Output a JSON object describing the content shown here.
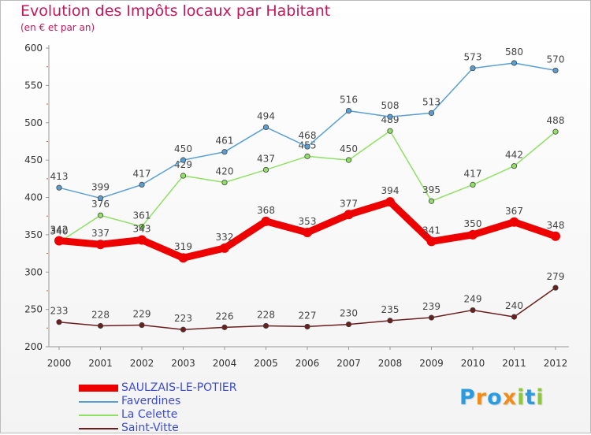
{
  "title": "Evolution des Impôts locaux par Habitant",
  "subtitle": "(en € et par an)",
  "logo": {
    "letters": [
      {
        "ch": "P",
        "color": "#2b9be0"
      },
      {
        "ch": "r",
        "color": "#f28c1b"
      },
      {
        "ch": "o",
        "color": "#2b9be0"
      },
      {
        "ch": "x",
        "color": "#f28c1b"
      },
      {
        "ch": "i",
        "color": "#8dc63f"
      },
      {
        "ch": "t",
        "color": "#2b9be0"
      },
      {
        "ch": "i",
        "color": "#8dc63f"
      }
    ]
  },
  "chart_data": {
    "type": "line",
    "x": [
      "2000",
      "2001",
      "2002",
      "2003",
      "2004",
      "2005",
      "2006",
      "2007",
      "2008",
      "2009",
      "2010",
      "2011",
      "2012"
    ],
    "ylim": [
      200,
      600
    ],
    "yticks": [
      "200",
      "250",
      "300",
      "350",
      "400",
      "450",
      "500",
      "550",
      "600"
    ],
    "grid": false,
    "legend_position": "bottom-left",
    "series": [
      {
        "name": "Saint-Vitte",
        "color": "#6b1e1e",
        "values": [
          233,
          228,
          229,
          223,
          226,
          228,
          227,
          230,
          235,
          239,
          249,
          240,
          279
        ],
        "labels": [
          "233",
          "228",
          "229",
          "223",
          "226",
          "228",
          "227",
          "230",
          "235",
          "239",
          "249",
          "240",
          "279"
        ]
      },
      {
        "name": "La Celette",
        "color": "#90e065",
        "values": [
          340,
          376,
          361,
          429,
          420,
          437,
          455,
          450,
          489,
          395,
          417,
          442,
          488
        ],
        "labels": [
          "340",
          "376",
          "361",
          "429",
          "420",
          "437",
          "455",
          "450",
          "489",
          "395",
          "417",
          "442",
          "488"
        ]
      },
      {
        "name": "Faverdines",
        "color": "#5a9fd4",
        "values": [
          413,
          399,
          417,
          450,
          461,
          494,
          468,
          516,
          508,
          513,
          573,
          580,
          570
        ],
        "labels": [
          "413",
          "399",
          "417",
          "450",
          "461",
          "494",
          "468",
          "516",
          "508",
          "513",
          "573",
          "580",
          "570"
        ]
      },
      {
        "name": "SAULZAIS-LE-POTIER",
        "color": "#ee0000",
        "values": [
          342,
          337,
          343,
          319,
          332,
          368,
          353,
          377,
          394,
          341,
          350,
          367,
          348
        ],
        "labels": [
          "342",
          "337",
          "343",
          "319",
          "332",
          "368",
          "353",
          "377",
          "394",
          "341",
          "350",
          "367",
          "348"
        ]
      }
    ]
  }
}
